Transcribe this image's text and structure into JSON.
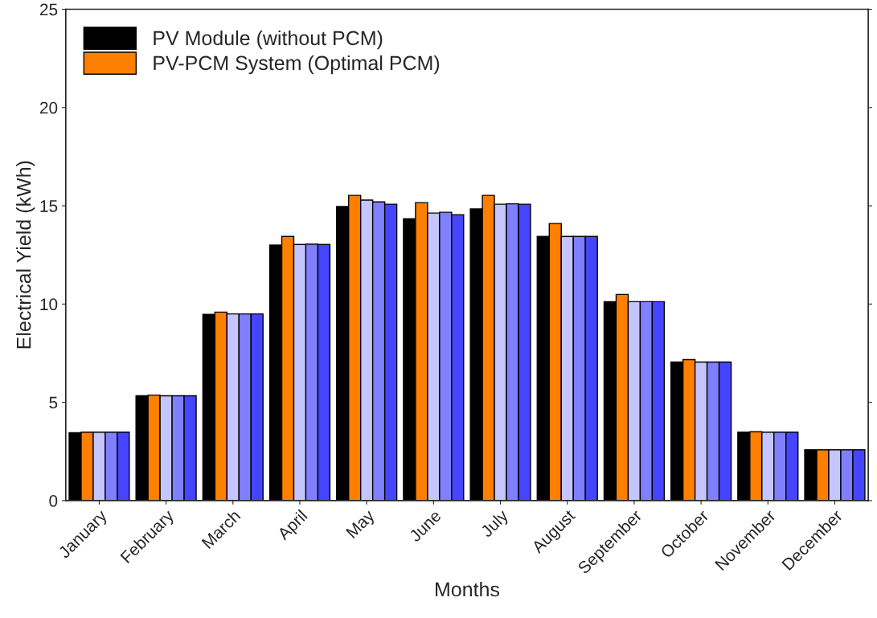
{
  "chart_data": {
    "type": "bar",
    "xlabel": "Months",
    "ylabel": "Electrical Yield (kWh)",
    "categories": [
      "January",
      "February",
      "March",
      "April",
      "May",
      "June",
      "July",
      "August",
      "September",
      "October",
      "November",
      "December"
    ],
    "series": [
      {
        "name": "PV Module (without PCM)",
        "color": "#000000",
        "values": [
          3.45,
          5.33,
          9.47,
          13.0,
          14.96,
          14.34,
          14.84,
          13.44,
          10.12,
          7.05,
          3.48,
          2.58
        ]
      },
      {
        "name": "PV-PCM System (Optimal PCM)",
        "color": "#ff7f00",
        "values": [
          3.48,
          5.37,
          9.59,
          13.44,
          15.53,
          15.16,
          15.53,
          14.1,
          10.49,
          7.17,
          3.5,
          2.58
        ]
      },
      {
        "color": "#c5c5ff",
        "values": [
          3.48,
          5.33,
          9.5,
          13.03,
          15.29,
          14.63,
          15.08,
          13.44,
          10.12,
          7.05,
          3.48,
          2.58
        ]
      },
      {
        "color": "#8080ff",
        "values": [
          3.48,
          5.33,
          9.5,
          13.05,
          15.2,
          14.67,
          15.1,
          13.44,
          10.12,
          7.05,
          3.48,
          2.58
        ]
      },
      {
        "color": "#4545ff",
        "values": [
          3.48,
          5.33,
          9.5,
          13.03,
          15.08,
          14.55,
          15.08,
          13.44,
          10.12,
          7.05,
          3.48,
          2.58
        ]
      }
    ],
    "ylim": [
      0,
      25
    ],
    "yticks": [
      0,
      5,
      10,
      15,
      20,
      25
    ],
    "grid": false,
    "legend": "top left"
  }
}
